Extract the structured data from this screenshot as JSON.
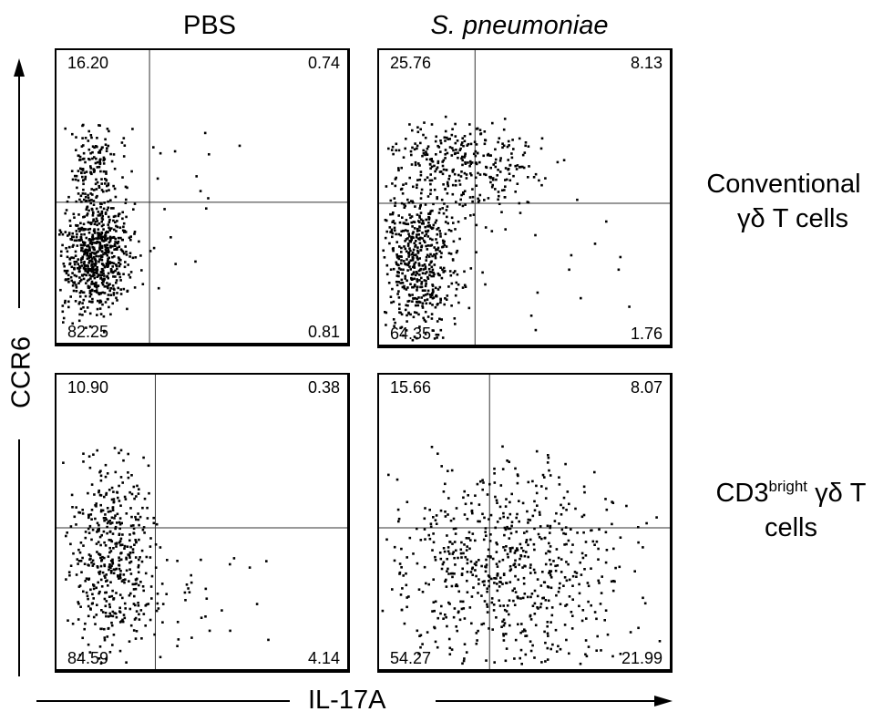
{
  "chart_data": {
    "type": "scatter",
    "x_axis_label": "IL-17A",
    "y_axis_label": "CCR6",
    "column_titles": [
      "PBS",
      "S. pneumoniae"
    ],
    "row_labels": [
      {
        "lines": [
          "Conventional",
          "γδ T cells"
        ]
      },
      {
        "prefix": "CD3",
        "superscript": "bright",
        "suffix": " γδ T",
        "line2": "cells"
      }
    ],
    "panels": [
      {
        "row": 0,
        "col": 0,
        "quadrants": {
          "upper_left": "16.20",
          "upper_right": "0.74",
          "lower_left": "82.25",
          "lower_right": "0.81"
        },
        "gate": {
          "x": 0.32,
          "y": 0.52
        }
      },
      {
        "row": 0,
        "col": 1,
        "quadrants": {
          "upper_left": "25.76",
          "upper_right": "8.13",
          "lower_left": "64.35",
          "lower_right": "1.76"
        },
        "gate": {
          "x": 0.33,
          "y": 0.52
        }
      },
      {
        "row": 1,
        "col": 0,
        "quadrants": {
          "upper_left": "10.90",
          "upper_right": "0.38",
          "lower_left": "84.59",
          "lower_right": "4.14"
        },
        "gate": {
          "x": 0.34,
          "y": 0.52
        }
      },
      {
        "row": 1,
        "col": 1,
        "quadrants": {
          "upper_left": "15.66",
          "upper_right": "8.07",
          "lower_left": "54.27",
          "lower_right": "21.99"
        },
        "gate": {
          "x": 0.38,
          "y": 0.52
        }
      }
    ]
  }
}
